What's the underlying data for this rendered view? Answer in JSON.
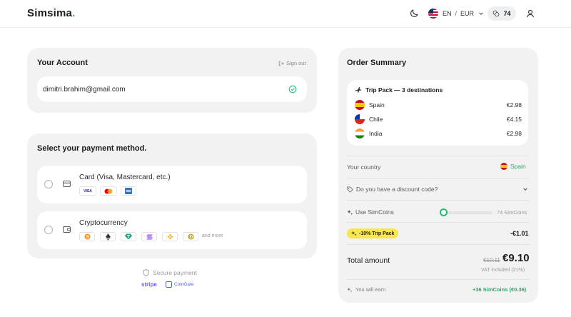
{
  "header": {
    "logo": "Simsima",
    "logo_dot": ".",
    "language": "EN",
    "separator": "/",
    "currency": "EUR",
    "coins": "74"
  },
  "account": {
    "title": "Your Account",
    "sign_out": "Sign out",
    "email": "dimitri.brahim@gmail.com"
  },
  "payment": {
    "title": "Select your payment method.",
    "card_label": "Card (Visa, Mastercard, etc.)",
    "card_brands": [
      "VISA",
      "mastercard",
      "amex"
    ],
    "crypto_label": "Cryptocurrency",
    "crypto_coins": [
      "bitcoin",
      "ethereum",
      "tether",
      "solana",
      "binance",
      "dogecoin"
    ],
    "crypto_more": "and more"
  },
  "secure": {
    "label": "Secure payment",
    "stripe": "stripe",
    "coingate": "CoinGate"
  },
  "order": {
    "title": "Order Summary",
    "trip_title": "Trip Pack — 3 destinations",
    "destinations": [
      {
        "name": "Spain",
        "price": "€2.98",
        "flag": "es"
      },
      {
        "name": "Chile",
        "price": "€4.15",
        "flag": "cl"
      },
      {
        "name": "India",
        "price": "€2.98",
        "flag": "in"
      }
    ],
    "country_label": "Your country",
    "country_value": "Spain",
    "discount_label": "Do you have a discount code?",
    "simcoins_label": "Use SimCoins",
    "simcoins_count": "74 SimCoins",
    "simcoins_used_fraction": 0,
    "promo_badge": "-10% Trip Pack",
    "promo_value": "-€1.01",
    "total_label": "Total amount",
    "old_price": "€10.11",
    "new_price": "€9.10",
    "vat": "VAT included (21%)",
    "earn_label": "You will earn",
    "earn_value": "+36 SimCoins (€0.36)"
  },
  "colors": {
    "accent_green": "#1dbf73",
    "promo_yellow": "#f7e74a",
    "card_bg": "#f2f2f3"
  }
}
